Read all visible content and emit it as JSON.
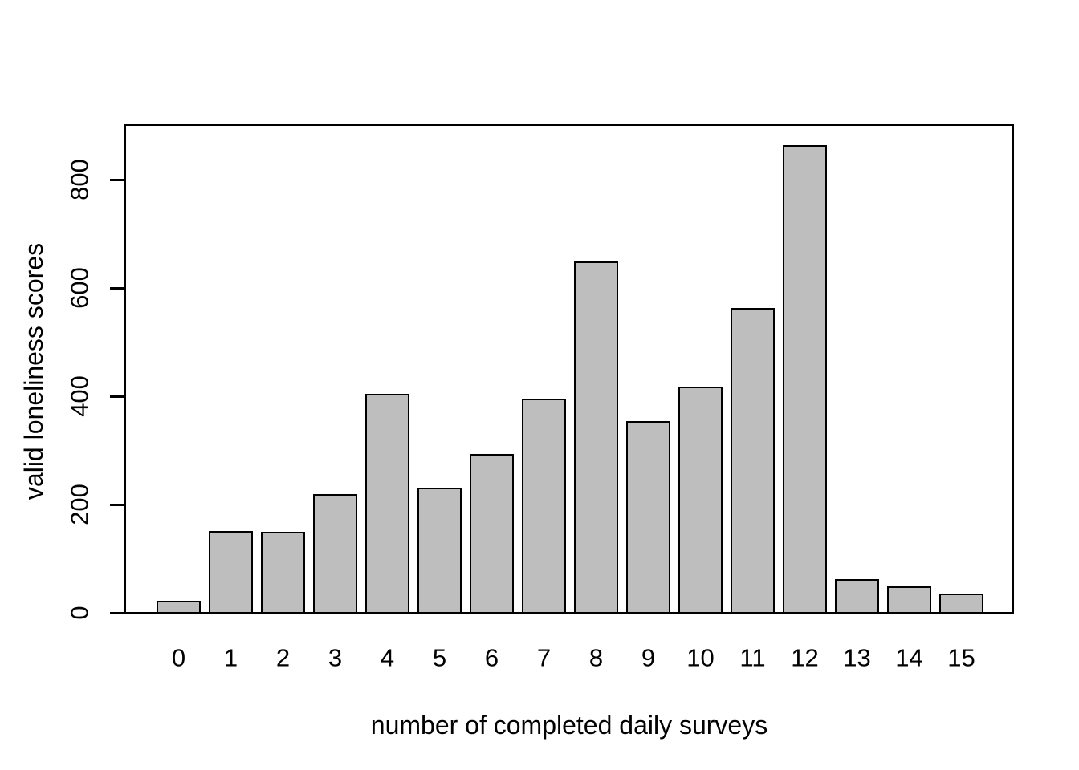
{
  "chart_data": {
    "type": "bar",
    "title": "",
    "xlabel": "number of completed daily surveys",
    "ylabel": "valid loneliness scores",
    "categories": [
      "0",
      "1",
      "2",
      "3",
      "4",
      "5",
      "6",
      "7",
      "8",
      "9",
      "10",
      "11",
      "12",
      "13",
      "14",
      "15"
    ],
    "values": [
      21,
      150,
      148,
      218,
      403,
      230,
      292,
      394,
      648,
      352,
      416,
      561,
      862,
      60,
      47,
      34
    ],
    "yticks": [
      0,
      200,
      400,
      600,
      800
    ],
    "ylim": [
      0,
      900
    ],
    "grid": false,
    "legend": false,
    "bar_fill": "#BEBEBE",
    "bar_border": "#000000",
    "background": "#FFFFFF",
    "text_color": "#000000"
  }
}
